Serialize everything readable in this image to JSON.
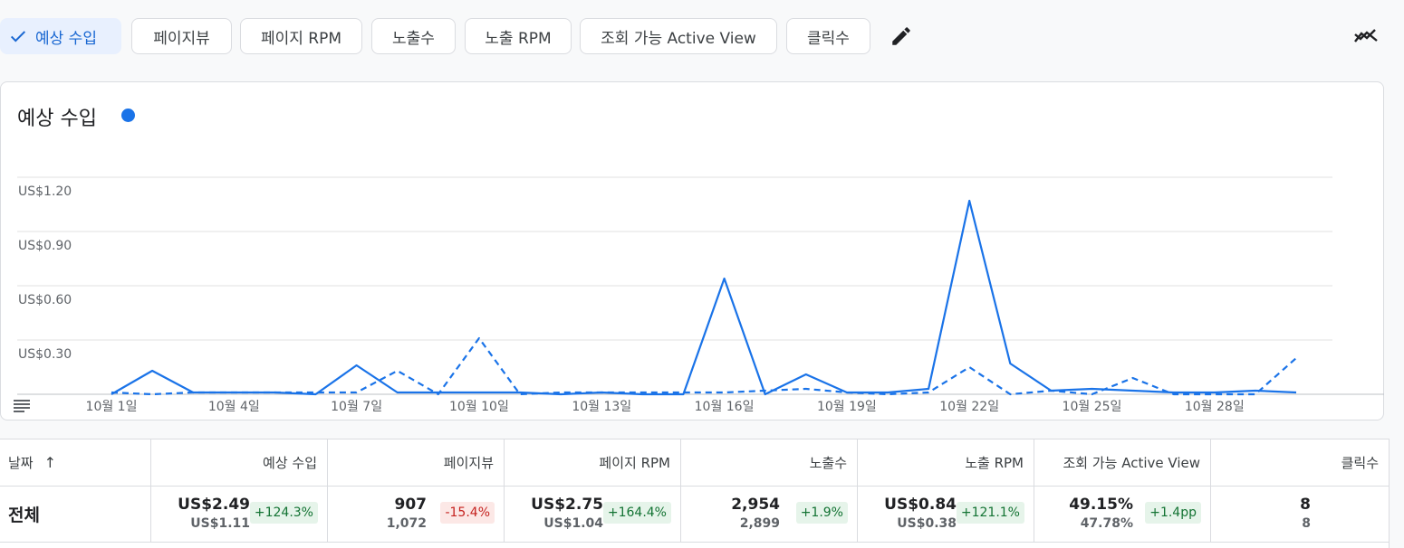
{
  "metric_chips": [
    {
      "label": "예상 수입",
      "selected": true
    },
    {
      "label": "페이지뷰",
      "selected": false
    },
    {
      "label": "페이지 RPM",
      "selected": false
    },
    {
      "label": "노출수",
      "selected": false
    },
    {
      "label": "노출 RPM",
      "selected": false
    },
    {
      "label": "조회 가능 Active View",
      "selected": false
    },
    {
      "label": "클릭수",
      "selected": false
    }
  ],
  "colors": {
    "accent": "#1a73e8",
    "chip_selected_bg": "#e8f0fe",
    "positive_bg": "#e6f4ea",
    "negative_bg": "#fce8e6"
  },
  "icons": {
    "edit": "pencil-icon",
    "compare": "trend-compare-icon",
    "chart_menu": "menu-lines-icon",
    "selected": "check-icon"
  },
  "chart_data": {
    "type": "line",
    "title": "예상 수입",
    "y_ticks": [
      "US$1.20",
      "US$0.90",
      "US$0.60",
      "US$0.30"
    ],
    "y_tick_values": [
      1.2,
      0.9,
      0.6,
      0.3
    ],
    "ylim": [
      0,
      1.3
    ],
    "x_tick_labels": [
      "10월 1일",
      "10월 4일",
      "10월 7일",
      "10월 10일",
      "10월 13일",
      "10월 16일",
      "10월 19일",
      "10월 22일",
      "10월 25일",
      "10월 28일"
    ],
    "x_tick_days": [
      1,
      4,
      7,
      10,
      13,
      16,
      19,
      22,
      25,
      28
    ],
    "x_range_days": [
      1,
      30
    ],
    "grid": true,
    "legend": "title-right",
    "series": [
      {
        "style": "solid",
        "color": "#1a73e8",
        "days": [
          1,
          2,
          3,
          4,
          5,
          6,
          7,
          8,
          9,
          10,
          11,
          12,
          13,
          14,
          15,
          16,
          17,
          18,
          19,
          20,
          21,
          22,
          23,
          24,
          25,
          26,
          27,
          28,
          29,
          30
        ],
        "values": [
          0.0,
          0.13,
          0.01,
          0.01,
          0.01,
          0.0,
          0.16,
          0.01,
          0.01,
          0.01,
          0.01,
          0.0,
          0.01,
          0.0,
          0.0,
          0.64,
          0.0,
          0.11,
          0.01,
          0.01,
          0.03,
          1.07,
          0.17,
          0.02,
          0.03,
          0.02,
          0.01,
          0.01,
          0.02,
          0.01
        ]
      },
      {
        "style": "dashed",
        "color": "#1a73e8",
        "days": [
          1,
          2,
          3,
          4,
          5,
          6,
          7,
          8,
          9,
          10,
          11,
          12,
          13,
          14,
          15,
          16,
          17,
          18,
          19,
          20,
          21,
          22,
          23,
          24,
          25,
          26,
          27,
          28,
          29,
          30
        ],
        "values": [
          0.01,
          0.0,
          0.01,
          0.01,
          0.01,
          0.01,
          0.01,
          0.13,
          0.0,
          0.31,
          0.0,
          0.01,
          0.01,
          0.01,
          0.01,
          0.01,
          0.02,
          0.03,
          0.01,
          0.0,
          0.01,
          0.15,
          0.0,
          0.02,
          0.0,
          0.09,
          0.0,
          0.0,
          0.0,
          0.2
        ]
      }
    ]
  },
  "table": {
    "headers": [
      "날짜",
      "예상 수입",
      "페이지뷰",
      "페이지 RPM",
      "노출수",
      "노출 RPM",
      "조회 가능 Active View",
      "클릭수"
    ],
    "sort_indicator": "↑",
    "total_row": {
      "label": "전체",
      "cells": [
        {
          "main": "US$2.49",
          "sub": "US$1.11",
          "change": "+124.3%",
          "trend": "up"
        },
        {
          "main": "907",
          "sub": "1,072",
          "change": "-15.4%",
          "trend": "down"
        },
        {
          "main": "US$2.75",
          "sub": "US$1.04",
          "change": "+164.4%",
          "trend": "up"
        },
        {
          "main": "2,954",
          "sub": "2,899",
          "change": "+1.9%",
          "trend": "up"
        },
        {
          "main": "US$0.84",
          "sub": "US$0.38",
          "change": "+121.1%",
          "trend": "up"
        },
        {
          "main": "49.15%",
          "sub": "47.78%",
          "change": "+1.4pp",
          "trend": "up"
        },
        {
          "main": "8",
          "sub": "8",
          "change": "",
          "trend": "none"
        }
      ]
    }
  }
}
